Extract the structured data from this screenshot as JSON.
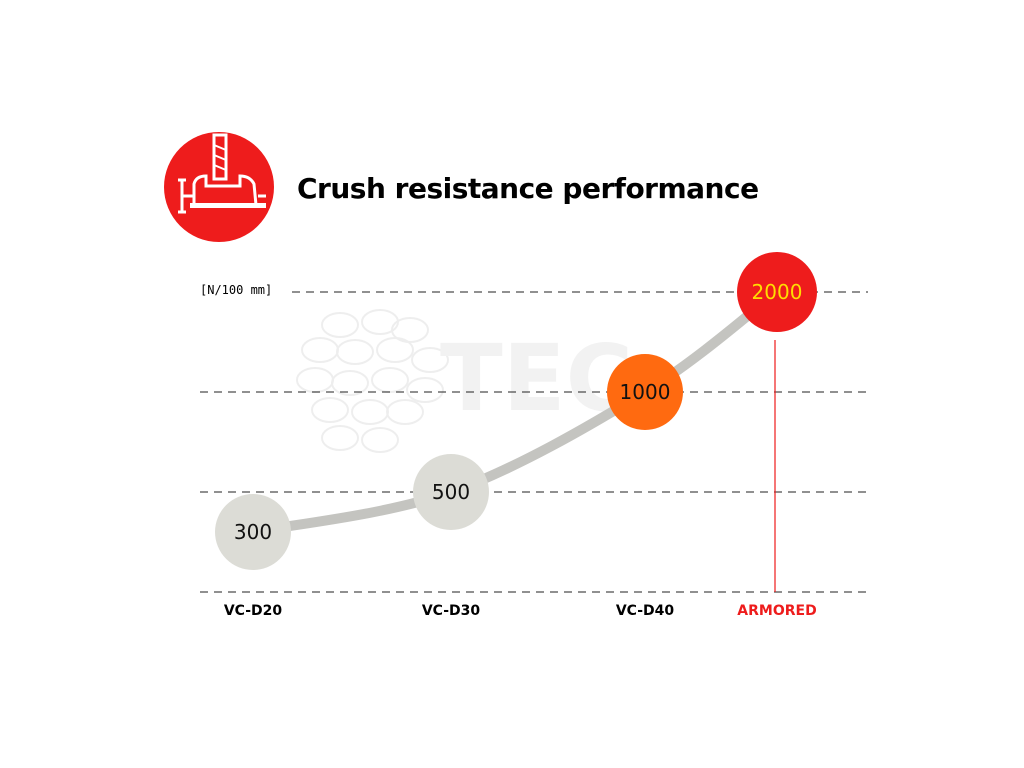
{
  "header": {
    "title": "Crush resistance performance",
    "icon": "vise-clamp-icon",
    "icon_color": "#ee1c1c"
  },
  "watermark": {
    "text": "TEC"
  },
  "chart_data": {
    "type": "line",
    "title": "Crush resistance performance",
    "unit_label": "[N/100 mm]",
    "categories": [
      "VC-D20",
      "VC-D30",
      "VC-D40",
      "ARMORED"
    ],
    "values": [
      300,
      500,
      1000,
      2000
    ],
    "value_labels": [
      "300",
      "500",
      "1000",
      "2000"
    ],
    "gridlines": [
      0,
      500,
      1000,
      2000
    ],
    "grid": true,
    "line_color": "#c4c4c0",
    "marker_colors": [
      "#dcdcd6",
      "#dcdcd6",
      "#ff6a10",
      "#ee1c1c"
    ],
    "value_text_colors": [
      "#111111",
      "#111111",
      "#111111",
      "#ffdd00"
    ],
    "label_colors": [
      "#000000",
      "#000000",
      "#000000",
      "#ee1c1c"
    ],
    "highlight_color": "#ee1c1c"
  }
}
